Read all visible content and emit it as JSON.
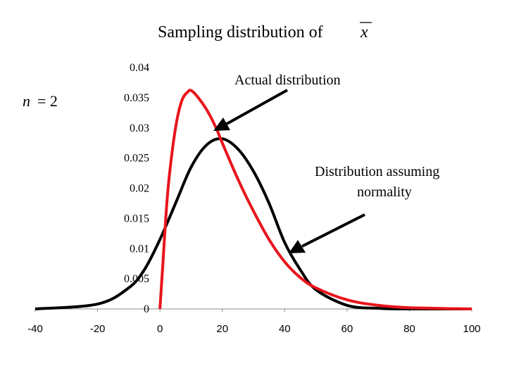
{
  "title": {
    "text": "Sampling distribution of",
    "symbol": "x"
  },
  "sample_size_label": {
    "variable": "n",
    "value": "= 2"
  },
  "annotations": {
    "actual": "Actual distribution",
    "normal_line1": "Distribution assuming",
    "normal_line2": "normality"
  },
  "colors": {
    "actual": "#e8141c",
    "normal": "#000000",
    "arrow": "#000000"
  },
  "chart_data": {
    "type": "line",
    "title": "Sampling distribution of x̄",
    "xlabel": "",
    "ylabel": "",
    "xlim": [
      -40,
      100
    ],
    "ylim": [
      0,
      0.04
    ],
    "x_ticks": [
      "-40",
      "-20",
      "0",
      "20",
      "40",
      "60",
      "80",
      "100"
    ],
    "y_ticks": [
      "0.04",
      "0.035",
      "0.03",
      "0.025",
      "0.02",
      "0.015",
      "0.01",
      "0.005",
      "0"
    ],
    "series": [
      {
        "name": "Distribution assuming normality",
        "color": "#000000",
        "x": [
          -40,
          -20,
          -10,
          -5,
          0,
          5,
          10,
          15,
          20,
          25,
          30,
          35,
          40,
          45,
          50,
          60,
          70,
          80,
          100
        ],
        "y": [
          0,
          0.0008,
          0.0035,
          0.0065,
          0.0115,
          0.0175,
          0.0235,
          0.0272,
          0.0282,
          0.0265,
          0.0228,
          0.0175,
          0.011,
          0.0065,
          0.0032,
          0.0006,
          0.0001,
          0,
          0
        ]
      },
      {
        "name": "Actual distribution",
        "color": "#e8141c",
        "x": [
          0,
          1,
          2,
          3,
          5,
          7,
          9,
          10,
          12,
          15,
          18,
          20,
          25,
          30,
          35,
          40,
          45,
          50,
          60,
          70,
          80,
          100
        ],
        "y": [
          0,
          0.008,
          0.016,
          0.022,
          0.03,
          0.0345,
          0.036,
          0.0362,
          0.0352,
          0.033,
          0.03,
          0.0275,
          0.0215,
          0.0162,
          0.0115,
          0.0078,
          0.0052,
          0.0035,
          0.0015,
          0.0006,
          0.0002,
          0
        ]
      }
    ]
  }
}
